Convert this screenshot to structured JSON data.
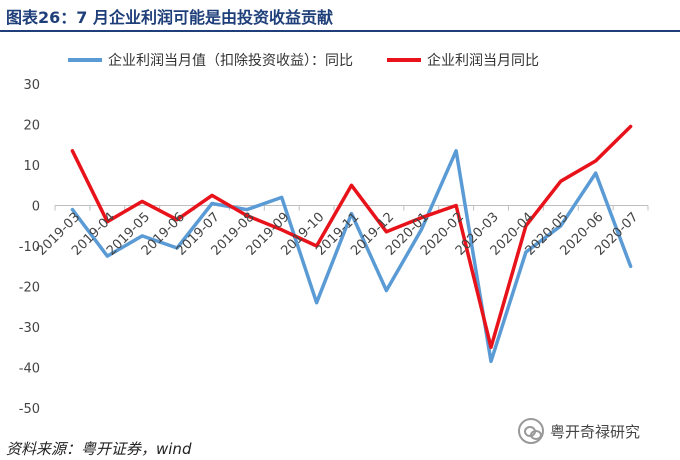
{
  "header": {
    "title": "图表26：7 月企业利润可能是由投资收益贡献"
  },
  "footer": {
    "source": "资料来源：粤开证券，wind",
    "brand": "粤开奇禄研究"
  },
  "icons": {
    "brand": "wechat-icon"
  },
  "chart_data": {
    "type": "line",
    "categories": [
      "2019-03",
      "2019-04",
      "2019-05",
      "2019-06",
      "2019-07",
      "2019-08",
      "2019-09",
      "2019-10",
      "2019-11",
      "2019-12",
      "2020-01",
      "2020-02",
      "2020-03",
      "2020-04",
      "2020-05",
      "2020-06",
      "2020-07"
    ],
    "series": [
      {
        "name": "企业利润当月值（扣除投资收益）：同比",
        "color": "#5b9bd5",
        "values": [
          -1,
          -12.5,
          -7.5,
          -10.5,
          0.5,
          -1,
          2,
          -24,
          -2,
          -21,
          -6,
          13.5,
          -38.5,
          -11.5,
          -5,
          8,
          -15
        ]
      },
      {
        "name": "企业利润当月同比",
        "color": "#e8121a",
        "values": [
          13.5,
          -4,
          1,
          -3.5,
          2.5,
          -2.5,
          -6,
          -10,
          5,
          -6.5,
          -3,
          0,
          -35,
          -5,
          6,
          11,
          19.5
        ]
      }
    ],
    "yticks": [
      "30",
      "20",
      "10",
      "0",
      "-10",
      "-20",
      "-30",
      "-40",
      "-50"
    ],
    "ylim": [
      -50,
      30
    ],
    "grid": false,
    "legend": "top"
  }
}
